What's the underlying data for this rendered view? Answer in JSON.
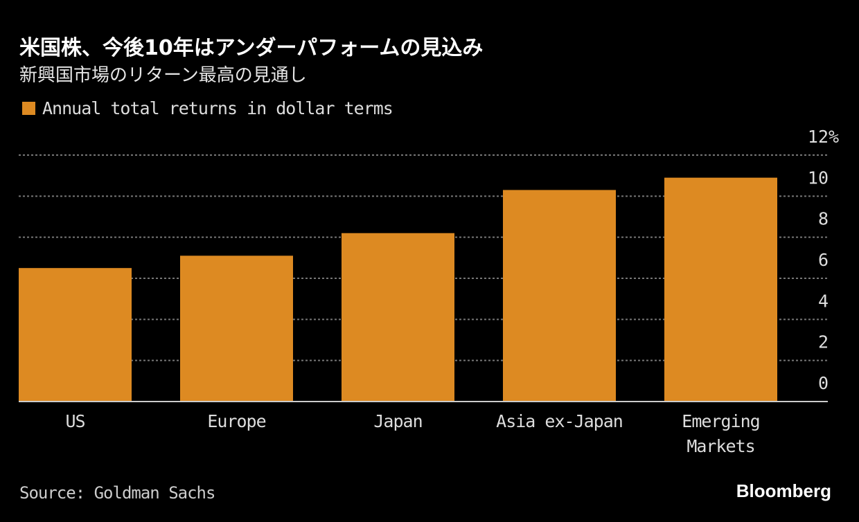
{
  "title": "米国株、今後10年はアンダーパフォームの見込み",
  "subtitle": "新興国市場のリターン最高の見通し",
  "source": "Source: Goldman Sachs",
  "logo": "Bloomberg",
  "colors": {
    "bar": "#dd8a22",
    "grid": "#777777",
    "background": "#000000"
  },
  "chart_data": {
    "type": "bar",
    "categories": [
      [
        "US"
      ],
      [
        "Europe"
      ],
      [
        "Japan"
      ],
      [
        "Asia ex-Japan"
      ],
      [
        "Emerging",
        "Markets"
      ]
    ],
    "series": [
      {
        "name": "Annual total returns in dollar terms",
        "values": [
          6.5,
          7.1,
          8.2,
          10.3,
          10.9
        ]
      }
    ],
    "yticks": [
      "0",
      "2",
      "4",
      "6",
      "8",
      "10",
      "12%"
    ],
    "ylim": [
      0,
      12
    ],
    "grid": true,
    "legend": "top-left",
    "xlabel": "",
    "ylabel": ""
  }
}
